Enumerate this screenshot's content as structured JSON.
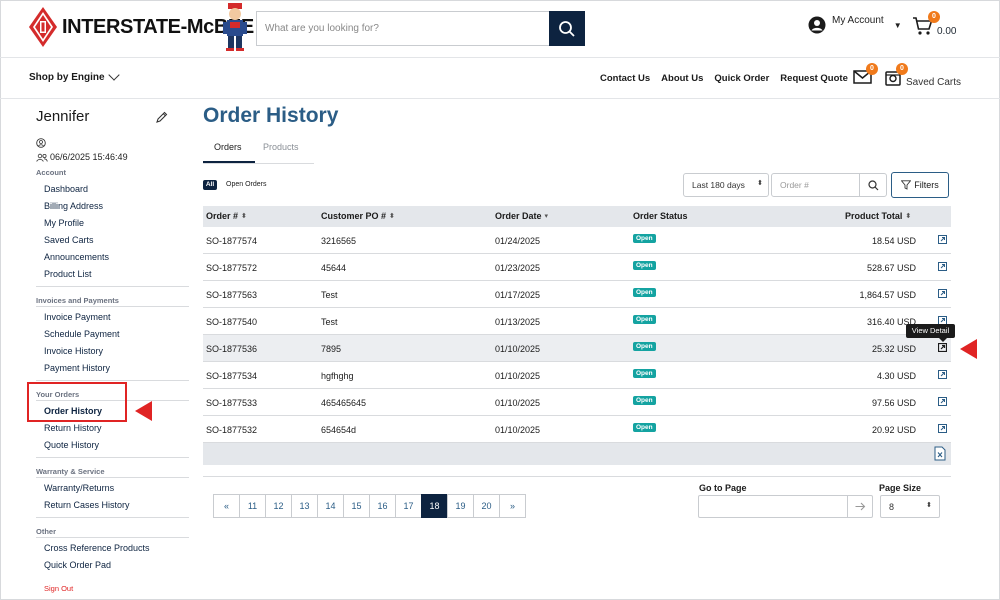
{
  "header": {
    "brand": "INTERSTATE-McBEE",
    "search_placeholder": "What are you looking for?",
    "account_label": "My Account",
    "cart_count": "0",
    "cart_total": "0.00"
  },
  "nav": {
    "shop_by": "Shop by Engine",
    "links": [
      "Contact Us",
      "About Us",
      "Quick Order",
      "Request Quote"
    ],
    "mail_badge": "0",
    "saved_badge": "0",
    "saved_label": "Saved Carts"
  },
  "sidebar": {
    "user_name": "Jennifer",
    "datetime": "06/6/2025 15:46:49",
    "sections": [
      {
        "title": "Account",
        "items": [
          "Dashboard",
          "Billing Address",
          "My Profile",
          "Saved Carts",
          "Announcements",
          "Product List"
        ]
      },
      {
        "title": "Invoices and Payments",
        "items": [
          "Invoice Payment",
          "Schedule Payment",
          "Invoice History",
          "Payment History"
        ]
      },
      {
        "title": "Your Orders",
        "items": [
          "Order History",
          "Return History",
          "Quote History"
        ]
      },
      {
        "title": "Warranty & Service",
        "items": [
          "Warranty/Returns",
          "Return Cases History"
        ]
      },
      {
        "title": "Other",
        "items": [
          "Cross Reference Products",
          "Quick Order Pad"
        ]
      }
    ],
    "sign_out": "Sign Out"
  },
  "main": {
    "title": "Order History",
    "tabs": [
      "Orders",
      "Products"
    ],
    "all_chip": "All",
    "open_orders": "Open Orders",
    "date_range": "Last 180 days",
    "order_placeholder": "Order #",
    "filters_label": "Filters",
    "columns": [
      "Order #",
      "Customer PO #",
      "Order Date",
      "Order Status",
      "Product Total"
    ],
    "rows": [
      {
        "order": "SO-1877574",
        "po": "3216565",
        "date": "01/24/2025",
        "status": "Open",
        "total": "18.54 USD"
      },
      {
        "order": "SO-1877572",
        "po": "45644",
        "date": "01/23/2025",
        "status": "Open",
        "total": "528.67 USD"
      },
      {
        "order": "SO-1877563",
        "po": "Test",
        "date": "01/17/2025",
        "status": "Open",
        "total": "1,864.57 USD"
      },
      {
        "order": "SO-1877540",
        "po": "Test",
        "date": "01/13/2025",
        "status": "Open",
        "total": "316.40 USD"
      },
      {
        "order": "SO-1877536",
        "po": "7895",
        "date": "01/10/2025",
        "status": "Open",
        "total": "25.32 USD"
      },
      {
        "order": "SO-1877534",
        "po": "hgfhghg",
        "date": "01/10/2025",
        "status": "Open",
        "total": "4.30 USD"
      },
      {
        "order": "SO-1877533",
        "po": "465465645",
        "date": "01/10/2025",
        "status": "Open",
        "total": "97.56 USD"
      },
      {
        "order": "SO-1877532",
        "po": "654654d",
        "date": "01/10/2025",
        "status": "Open",
        "total": "20.92 USD"
      }
    ],
    "tooltip": "View Detail",
    "pagination": {
      "prev": "«",
      "pages": [
        "11",
        "12",
        "13",
        "14",
        "15",
        "16",
        "17",
        "18",
        "19",
        "20"
      ],
      "active": "18",
      "next": "»"
    },
    "goto_label": "Go to Page",
    "page_size_label": "Page Size",
    "page_size": "8"
  }
}
